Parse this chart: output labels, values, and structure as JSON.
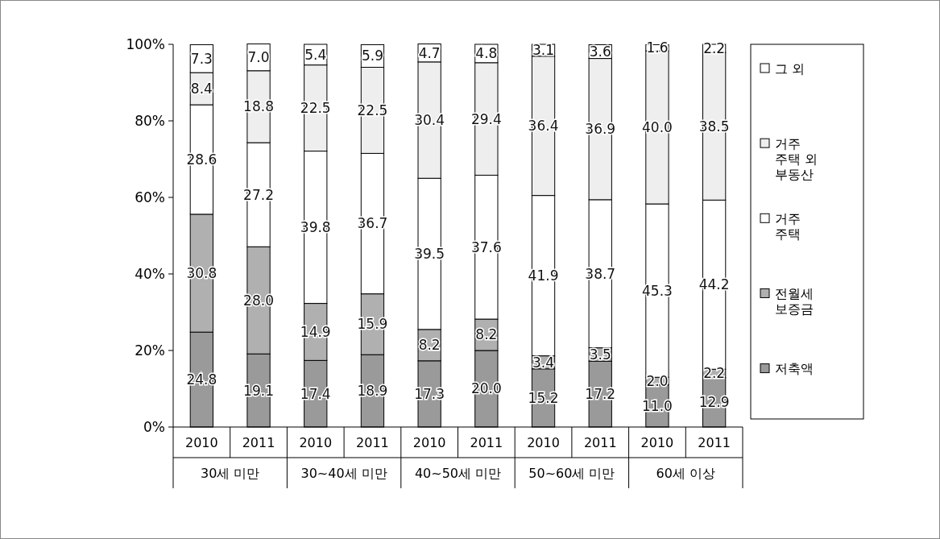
{
  "chart_data": {
    "type": "bar",
    "stacked": true,
    "legend": "right",
    "grid": false,
    "categories": [
      "2010",
      "2011",
      "2010",
      "2011",
      "2010",
      "2011",
      "2010",
      "2011",
      "2010",
      "2011"
    ],
    "annotations": [
      "30세 미만",
      "30~40세 미만",
      "40~50세 미만",
      "50~60세 미만",
      "60세 이상"
    ],
    "ylim": [
      0,
      100
    ],
    "yticks": [
      {
        "value": 0,
        "label": "0%"
      },
      {
        "value": 20,
        "label": "20%"
      },
      {
        "value": 40,
        "label": "40%"
      },
      {
        "value": 60,
        "label": "60%"
      },
      {
        "value": 80,
        "label": "80%"
      },
      {
        "value": 100,
        "label": "100%"
      }
    ],
    "series": [
      {
        "name": "저축액",
        "color": "#9a9a9a",
        "values": [
          24.8,
          19.1,
          17.4,
          18.9,
          17.3,
          20.0,
          15.2,
          17.2,
          11.0,
          12.9
        ],
        "value_labels": [
          "24.8",
          "19.1",
          "17.4",
          "18.9",
          "17.3",
          "20.0",
          "15.2",
          "17.2",
          "11.0",
          "12.9"
        ]
      },
      {
        "name": "전월세 보증금",
        "color": "#b0b0b0",
        "values": [
          30.8,
          28.0,
          14.9,
          15.9,
          8.2,
          8.2,
          3.4,
          3.5,
          2.0,
          2.2
        ],
        "value_labels": [
          "30.8",
          "28.0",
          "14.9",
          "15.9",
          "8.2",
          "8.2",
          "3.4",
          "3.5",
          "2.0",
          "2.2"
        ]
      },
      {
        "name": "거주 주택",
        "color": "#ffffff",
        "values": [
          28.6,
          27.2,
          39.8,
          36.7,
          39.5,
          37.6,
          41.9,
          38.7,
          45.3,
          44.2
        ],
        "value_labels": [
          "28.6",
          "27.2",
          "39.8",
          "36.7",
          "39.5",
          "37.6",
          "41.9",
          "38.7",
          "45.3",
          "44.2"
        ]
      },
      {
        "name": "거주 주택 외 부동산",
        "color": "#eeeeee",
        "values": [
          8.4,
          18.8,
          22.5,
          22.5,
          30.4,
          29.4,
          36.4,
          36.9,
          40.0,
          38.5
        ],
        "value_labels": [
          "8.4",
          "18.8",
          "22.5",
          "22.5",
          "30.4",
          "29.4",
          "36.4",
          "36.9",
          "40.0",
          "38.5"
        ]
      },
      {
        "name": "그 외",
        "color": "#ffffff",
        "values": [
          7.3,
          7.0,
          5.4,
          5.9,
          4.7,
          4.8,
          3.1,
          3.6,
          1.6,
          2.2
        ],
        "value_labels": [
          "7.3",
          "7.0",
          "5.4",
          "5.9",
          "4.7",
          "4.8",
          "3.1",
          "3.6",
          "1.6",
          "2.2"
        ]
      }
    ]
  }
}
